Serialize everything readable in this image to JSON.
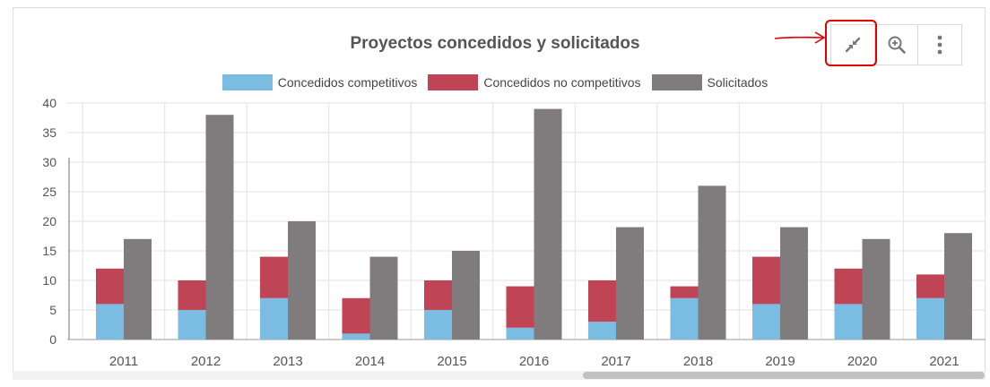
{
  "toolbar": {
    "buttons": [
      {
        "icon": "exit-fullscreen-icon"
      },
      {
        "icon": "zoom-in-icon"
      },
      {
        "icon": "more-vertical-icon"
      }
    ]
  },
  "colors": {
    "competitivos": "#7bbde2",
    "no_competitivos": "#bf4456",
    "solicitados": "#807c7d",
    "grid": "#e2e2e2",
    "axis_text": "#555555",
    "annotation": "#e00000"
  },
  "chart_data": {
    "type": "bar",
    "title": "Proyectos concedidos y solicitados",
    "xlabel": "",
    "ylabel": "",
    "ylim": [
      0,
      40
    ],
    "yticks": [
      0,
      5,
      10,
      15,
      20,
      25,
      30,
      35,
      40
    ],
    "grid": true,
    "legend_position": "top",
    "categories": [
      "2011",
      "2012",
      "2013",
      "2014",
      "2015",
      "2016",
      "2017",
      "2018",
      "2019",
      "2020",
      "2021"
    ],
    "series": [
      {
        "name": "Concedidos competitivos",
        "stack": "concedidos",
        "values": [
          6,
          5,
          7,
          1,
          5,
          2,
          3,
          7,
          6,
          6,
          7
        ]
      },
      {
        "name": "Concedidos no competitivos",
        "stack": "concedidos",
        "values": [
          6,
          5,
          7,
          6,
          5,
          7,
          7,
          2,
          8,
          6,
          4
        ]
      },
      {
        "name": "Solicitados",
        "stack": "solicitados",
        "values": [
          17,
          38,
          20,
          14,
          15,
          39,
          19,
          26,
          19,
          17,
          18
        ]
      }
    ]
  }
}
